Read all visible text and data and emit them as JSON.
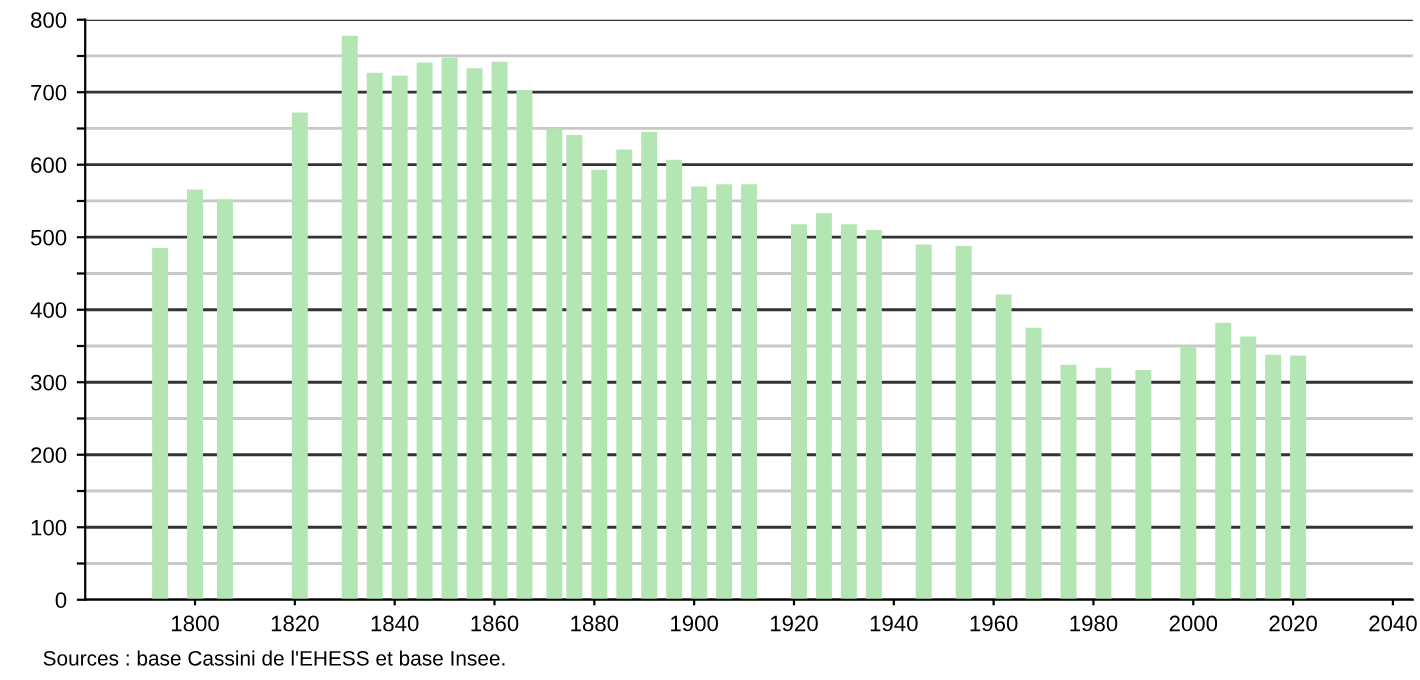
{
  "chart_data": {
    "type": "bar",
    "x": [
      1793,
      1800,
      1806,
      1821,
      1831,
      1836,
      1841,
      1846,
      1851,
      1856,
      1861,
      1866,
      1872,
      1876,
      1881,
      1886,
      1891,
      1896,
      1901,
      1906,
      1911,
      1921,
      1926,
      1931,
      1936,
      1946,
      1954,
      1962,
      1968,
      1975,
      1982,
      1990,
      1999,
      2006,
      2011,
      2016,
      2021
    ],
    "values": [
      485,
      566,
      552,
      672,
      778,
      727,
      723,
      741,
      748,
      733,
      742,
      703,
      650,
      641,
      593,
      621,
      645,
      607,
      570,
      573,
      573,
      518,
      533,
      518,
      510,
      490,
      488,
      421,
      375,
      324,
      320,
      317,
      349,
      382,
      363,
      338,
      337
    ],
    "color": "#b3e6b3",
    "xlim": [
      1778,
      2044
    ],
    "xticks": [
      1800,
      1820,
      1840,
      1860,
      1880,
      1900,
      1920,
      1940,
      1960,
      1980,
      2000,
      2020,
      2040
    ],
    "ylim": [
      0,
      800
    ],
    "yticks": [
      0,
      {
        "value": 50,
        "label": null
      },
      100,
      {
        "value": 150,
        "label": null
      },
      200,
      {
        "value": 250,
        "label": null
      },
      300,
      {
        "value": 350,
        "label": null
      },
      400,
      {
        "value": 450,
        "label": null
      },
      500,
      {
        "value": 550,
        "label": null
      },
      600,
      {
        "value": 650,
        "label": null
      },
      700,
      {
        "value": 750,
        "label": null
      },
      800
    ],
    "grid": "y",
    "annotations": [
      "Sources : base Cassini de l'EHESS et base Insee."
    ]
  }
}
